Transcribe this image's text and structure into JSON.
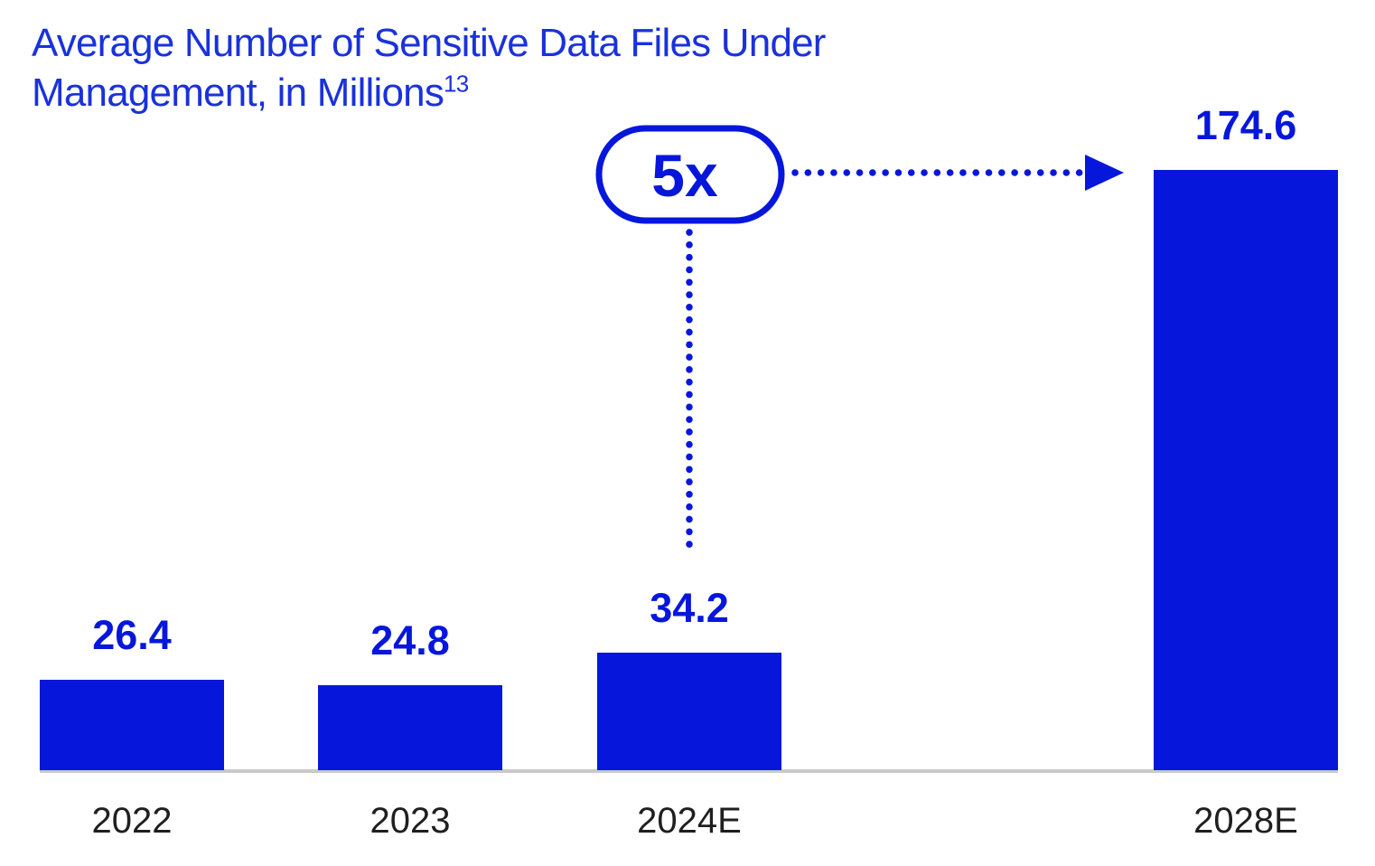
{
  "page": {
    "background": "#ffffff"
  },
  "title": {
    "line1": "Average Number of Sensitive Data Files Under",
    "line2": "Management, in Millions",
    "footnote_superscript": "13"
  },
  "chart_data": {
    "type": "bar",
    "title": "Average Number of Sensitive Data Files Under Management, in Millions",
    "title_footnote_marker": "13",
    "categories": [
      "2022",
      "2023",
      "2024E",
      "2028E"
    ],
    "values": [
      26.4,
      24.8,
      34.2,
      174.6
    ],
    "value_labels": [
      "26.4",
      "24.8",
      "34.2",
      "174.6"
    ],
    "series_name": "Average number of sensitive data files under management (millions)",
    "xlabel": "",
    "ylabel": "",
    "ylim": [
      0,
      180
    ],
    "y_axis_visible": false,
    "x_axis_baseline_visible": true,
    "gridlines": false,
    "legend": false,
    "data_labels_position": "above-bars",
    "annotation": {
      "label": "5x",
      "shape": "rounded-pill-outline",
      "points_from_category": "2024E",
      "points_to_category": "2028E",
      "connector_style": "dotted"
    }
  },
  "colors": {
    "bar_fill": "#0617db",
    "value_label": "#0617db",
    "title_text": "#1a32da",
    "annotation_blue": "#0617db",
    "year_label": "#1f1f1f",
    "baseline_gray": "#c9c9c9",
    "background": "#ffffff"
  }
}
